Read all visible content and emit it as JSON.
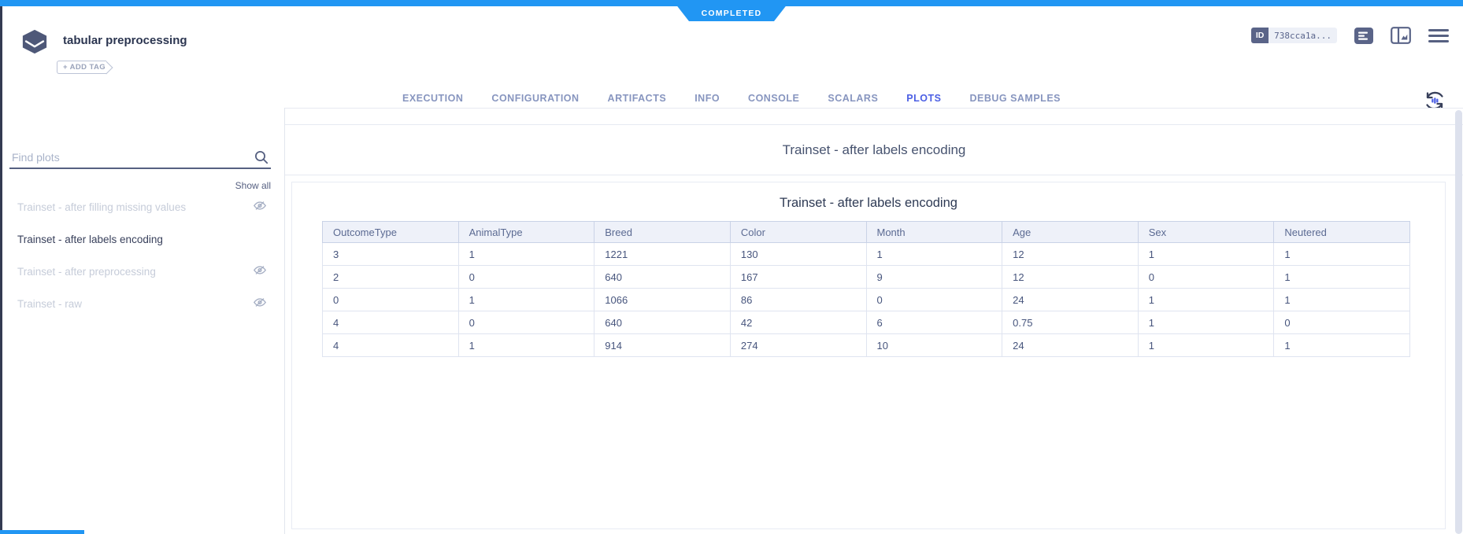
{
  "status_badge": "COMPLETED",
  "header": {
    "title": "tabular preprocessing",
    "add_tag": "+ ADD TAG",
    "id_label": "ID",
    "id_value": "738cca1a..."
  },
  "tabs": {
    "active": "PLOTS",
    "items": [
      "EXECUTION",
      "CONFIGURATION",
      "ARTIFACTS",
      "INFO",
      "CONSOLE",
      "SCALARS",
      "PLOTS",
      "DEBUG SAMPLES"
    ]
  },
  "sidebar": {
    "search_placeholder": "Find plots",
    "show_all": "Show all",
    "items": [
      {
        "label": "Trainset - after filling missing values",
        "selected": false,
        "hidden": true
      },
      {
        "label": "Trainset - after labels encoding",
        "selected": true,
        "hidden": false
      },
      {
        "label": "Trainset - after preprocessing",
        "selected": false,
        "hidden": true
      },
      {
        "label": "Trainset - raw",
        "selected": false,
        "hidden": true
      }
    ]
  },
  "main": {
    "group_title": "Trainset - after labels encoding",
    "plot_title": "Trainset - after labels encoding"
  },
  "chart_data": {
    "type": "table",
    "title": "Trainset - after labels encoding",
    "columns": [
      "OutcomeType",
      "AnimalType",
      "Breed",
      "Color",
      "Month",
      "Age",
      "Sex",
      "Neutered"
    ],
    "rows": [
      [
        "3",
        "1",
        "1221",
        "130",
        "1",
        "12",
        "1",
        "1"
      ],
      [
        "2",
        "0",
        "640",
        "167",
        "9",
        "12",
        "0",
        "1"
      ],
      [
        "0",
        "1",
        "1066",
        "86",
        "0",
        "24",
        "1",
        "1"
      ],
      [
        "4",
        "0",
        "640",
        "42",
        "6",
        "0.75",
        "1",
        "0"
      ],
      [
        "4",
        "1",
        "914",
        "274",
        "10",
        "24",
        "1",
        "1"
      ]
    ]
  },
  "colors": {
    "accent_blue": "#2196f3",
    "active_tab": "#4c5fe4",
    "slate": "#5a6488"
  }
}
